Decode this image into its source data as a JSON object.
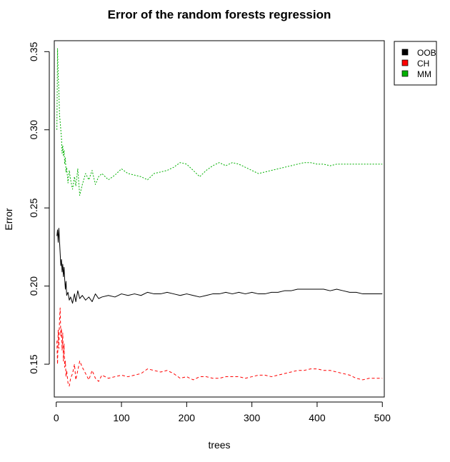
{
  "chart_data": {
    "type": "line",
    "title": "Error of the random forests regression",
    "xlabel": "trees",
    "ylabel": "Error",
    "xlim": [
      -3,
      503
    ],
    "ylim": [
      0.129,
      0.357
    ],
    "xticks": [
      0,
      100,
      200,
      300,
      400,
      500
    ],
    "yticks": [
      0.15,
      0.2,
      0.25,
      0.3,
      0.35
    ],
    "xtick_labels": [
      "0",
      "100",
      "200",
      "300",
      "400",
      "500"
    ],
    "ytick_labels": [
      "0.15",
      "0.20",
      "0.25",
      "0.30",
      "0.35"
    ],
    "grid": false,
    "legend_position": "top-right outside plot",
    "series": [
      {
        "name": "OOB",
        "color": "#000000",
        "linestyle": "solid",
        "x": [
          1,
          2,
          3,
          4,
          5,
          6,
          7,
          8,
          9,
          10,
          11,
          12,
          13,
          14,
          15,
          16,
          18,
          20,
          22,
          25,
          28,
          30,
          33,
          36,
          40,
          45,
          50,
          55,
          60,
          65,
          70,
          80,
          90,
          100,
          110,
          120,
          130,
          140,
          150,
          160,
          170,
          180,
          190,
          200,
          210,
          220,
          230,
          240,
          250,
          260,
          270,
          280,
          290,
          300,
          310,
          320,
          330,
          340,
          350,
          360,
          370,
          380,
          390,
          400,
          410,
          420,
          430,
          440,
          450,
          460,
          470,
          480,
          490,
          500
        ],
        "y": [
          0.232,
          0.236,
          0.228,
          0.237,
          0.229,
          0.221,
          0.213,
          0.217,
          0.209,
          0.214,
          0.206,
          0.212,
          0.204,
          0.198,
          0.203,
          0.194,
          0.196,
          0.191,
          0.193,
          0.189,
          0.195,
          0.19,
          0.197,
          0.192,
          0.194,
          0.191,
          0.193,
          0.19,
          0.195,
          0.192,
          0.193,
          0.194,
          0.193,
          0.195,
          0.194,
          0.195,
          0.194,
          0.196,
          0.195,
          0.195,
          0.196,
          0.195,
          0.194,
          0.195,
          0.194,
          0.193,
          0.194,
          0.195,
          0.195,
          0.196,
          0.195,
          0.196,
          0.195,
          0.196,
          0.195,
          0.195,
          0.196,
          0.196,
          0.197,
          0.197,
          0.198,
          0.198,
          0.198,
          0.198,
          0.198,
          0.197,
          0.198,
          0.197,
          0.196,
          0.196,
          0.195,
          0.195,
          0.195,
          0.195
        ]
      },
      {
        "name": "CH",
        "color": "#ff0000",
        "linestyle": "dashed",
        "x": [
          1,
          2,
          3,
          4,
          5,
          6,
          7,
          8,
          9,
          10,
          11,
          12,
          13,
          14,
          15,
          16,
          18,
          20,
          22,
          25,
          28,
          30,
          33,
          36,
          40,
          45,
          50,
          55,
          60,
          65,
          70,
          80,
          90,
          100,
          110,
          120,
          130,
          140,
          150,
          160,
          170,
          180,
          190,
          200,
          210,
          220,
          230,
          240,
          250,
          260,
          270,
          280,
          290,
          300,
          310,
          320,
          330,
          340,
          350,
          360,
          370,
          380,
          390,
          400,
          410,
          420,
          430,
          440,
          450,
          460,
          470,
          480,
          490,
          500
        ],
        "y": [
          0.165,
          0.15,
          0.172,
          0.16,
          0.178,
          0.186,
          0.168,
          0.173,
          0.159,
          0.17,
          0.152,
          0.163,
          0.148,
          0.152,
          0.142,
          0.146,
          0.138,
          0.136,
          0.141,
          0.144,
          0.15,
          0.14,
          0.146,
          0.152,
          0.148,
          0.144,
          0.14,
          0.146,
          0.141,
          0.139,
          0.143,
          0.141,
          0.142,
          0.143,
          0.142,
          0.143,
          0.144,
          0.147,
          0.146,
          0.145,
          0.146,
          0.144,
          0.141,
          0.142,
          0.14,
          0.142,
          0.142,
          0.141,
          0.141,
          0.142,
          0.142,
          0.142,
          0.141,
          0.142,
          0.143,
          0.143,
          0.142,
          0.143,
          0.144,
          0.145,
          0.146,
          0.146,
          0.147,
          0.147,
          0.146,
          0.146,
          0.145,
          0.144,
          0.143,
          0.141,
          0.14,
          0.141,
          0.141,
          0.141
        ]
      },
      {
        "name": "MM",
        "color": "#00b000",
        "linestyle": "dotted",
        "x": [
          1,
          2,
          3,
          4,
          5,
          6,
          7,
          8,
          9,
          10,
          11,
          12,
          13,
          14,
          15,
          16,
          18,
          20,
          22,
          25,
          28,
          30,
          33,
          36,
          40,
          45,
          50,
          55,
          60,
          65,
          70,
          80,
          90,
          100,
          110,
          120,
          130,
          140,
          150,
          160,
          170,
          180,
          190,
          200,
          210,
          220,
          230,
          240,
          250,
          260,
          270,
          280,
          290,
          300,
          310,
          320,
          330,
          340,
          350,
          360,
          370,
          380,
          390,
          400,
          410,
          420,
          430,
          440,
          450,
          460,
          470,
          480,
          490,
          500
        ],
        "y": [
          0.3,
          0.352,
          0.335,
          0.325,
          0.31,
          0.305,
          0.3,
          0.295,
          0.285,
          0.29,
          0.283,
          0.287,
          0.278,
          0.282,
          0.273,
          0.276,
          0.266,
          0.274,
          0.268,
          0.262,
          0.27,
          0.264,
          0.275,
          0.258,
          0.265,
          0.272,
          0.268,
          0.274,
          0.265,
          0.27,
          0.272,
          0.268,
          0.271,
          0.275,
          0.272,
          0.271,
          0.27,
          0.268,
          0.272,
          0.273,
          0.274,
          0.276,
          0.279,
          0.278,
          0.274,
          0.27,
          0.274,
          0.277,
          0.279,
          0.277,
          0.279,
          0.278,
          0.276,
          0.274,
          0.272,
          0.273,
          0.274,
          0.275,
          0.276,
          0.277,
          0.278,
          0.279,
          0.279,
          0.278,
          0.278,
          0.277,
          0.278,
          0.278,
          0.278,
          0.278,
          0.278,
          0.278,
          0.278,
          0.278
        ]
      }
    ]
  }
}
